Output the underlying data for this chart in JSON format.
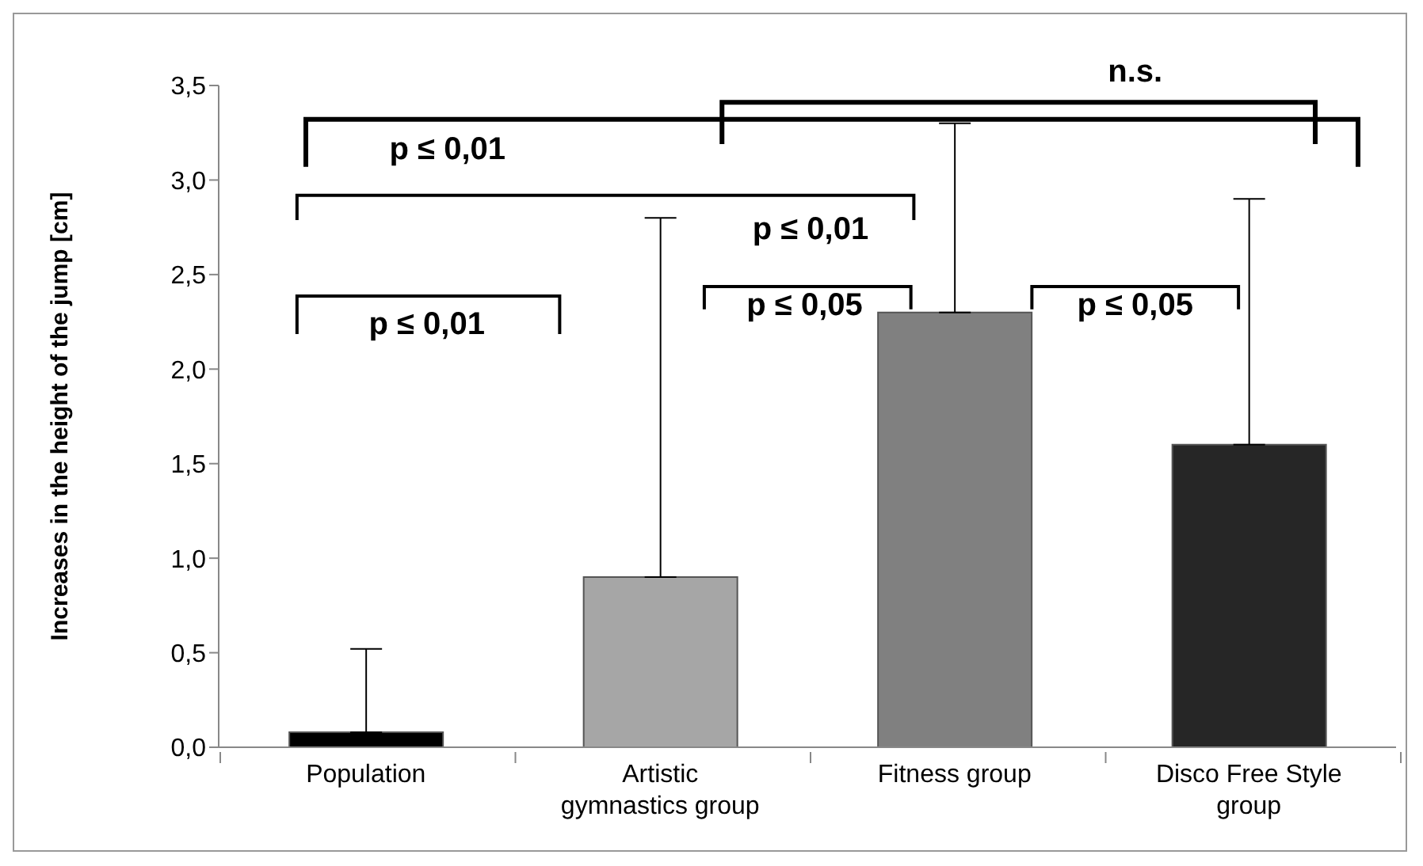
{
  "chart_data": {
    "type": "bar",
    "ylabel": "Increases in the height of the jump [cm]",
    "categories": [
      "Population",
      "Artistic gymnastics group",
      "Fitness group",
      "Disco Free Style group"
    ],
    "values": [
      0.08,
      0.9,
      2.3,
      1.6
    ],
    "colors": [
      "#000000",
      "#a6a6a6",
      "#808080",
      "#262626"
    ],
    "errors": [
      [
        0.08,
        0.52
      ],
      [
        0.9,
        2.8
      ],
      [
        2.3,
        3.3
      ],
      [
        1.6,
        2.9
      ]
    ],
    "ylim": [
      0,
      3.5
    ],
    "yticks": [
      {
        "value": 0,
        "label": "0,0"
      },
      {
        "value": 0.5,
        "label": "0,5"
      },
      {
        "value": 1,
        "label": "1,0"
      },
      {
        "value": 1.5,
        "label": "1,5"
      },
      {
        "value": 2,
        "label": "2,0"
      },
      {
        "value": 2.5,
        "label": "2,5"
      },
      {
        "value": 3,
        "label": "3,0"
      },
      {
        "value": 3.5,
        "label": "3,5"
      }
    ],
    "annotations": [
      "p ≤ 0,01",
      "n.s.",
      "p ≤ 0,01",
      "p ≤ 0,01",
      "p ≤ 0,05",
      "p ≤ 0,05"
    ]
  }
}
